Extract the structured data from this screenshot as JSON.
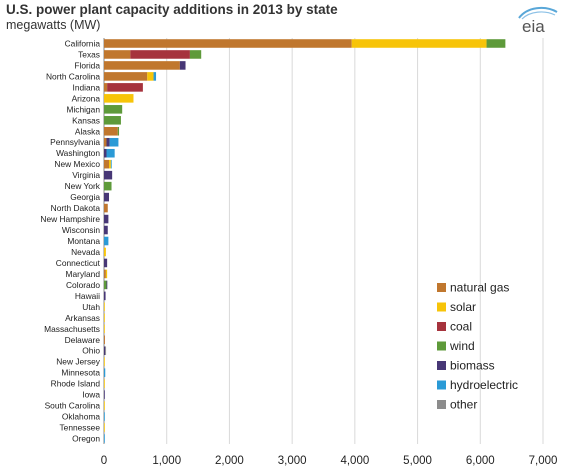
{
  "header": {
    "title": "U.S. power plant capacity additions in 2013 by state",
    "subtitle": "megawatts (MW)",
    "logo_text": "eia"
  },
  "colors": {
    "natural gas": "#c0772e",
    "solar": "#f7c409",
    "coal": "#a6333d",
    "wind": "#5e9a3a",
    "biomass": "#473776",
    "hydroelectric": "#2a9ad6",
    "other": "#8c8c8c"
  },
  "chart_data": {
    "type": "bar",
    "orientation": "horizontal",
    "stacked": true,
    "title": "U.S. power plant capacity additions in 2013 by state",
    "subtitle": "megawatts (MW)",
    "xlim": [
      0,
      7000
    ],
    "xticks": [
      "0",
      "1,000",
      "2,000",
      "3,000",
      "4,000",
      "5,000",
      "6,000",
      "7,000"
    ],
    "grid": "vertical",
    "legend_position": "bottom-right",
    "categories": [
      "California",
      "Texas",
      "Florida",
      "North Carolina",
      "Indiana",
      "Arizona",
      "Michigan",
      "Kansas",
      "Alaska",
      "Pennsylvania",
      "Washington",
      "New Mexico",
      "Virginia",
      "New York",
      "Georgia",
      "North Dakota",
      "New Hampshire",
      "Wisconsin",
      "Montana",
      "Nevada",
      "Connecticut",
      "Maryland",
      "Colorado",
      "Hawaii",
      "Utah",
      "Arkansas",
      "Massachusetts",
      "Delaware",
      "Ohio",
      "New Jersey",
      "Minnesota",
      "Rhode Island",
      "Iowa",
      "South Carolina",
      "Oklahoma",
      "Tennessee",
      "Oregon"
    ],
    "series": [
      {
        "name": "natural gas",
        "values": [
          3950,
          420,
          1210,
          690,
          50,
          0,
          0,
          0,
          220,
          40,
          0,
          80,
          0,
          0,
          0,
          60,
          0,
          0,
          0,
          0,
          0,
          30,
          0,
          0,
          0,
          0,
          0,
          15,
          0,
          0,
          0,
          0,
          0,
          0,
          0,
          0,
          0
        ]
      },
      {
        "name": "solar",
        "values": [
          2150,
          0,
          0,
          100,
          0,
          470,
          0,
          0,
          0,
          0,
          0,
          30,
          0,
          0,
          0,
          0,
          0,
          0,
          0,
          30,
          0,
          20,
          0,
          0,
          5,
          10,
          10,
          0,
          0,
          10,
          0,
          10,
          0,
          5,
          0,
          5,
          0
        ]
      },
      {
        "name": "coal",
        "values": [
          0,
          950,
          0,
          0,
          570,
          0,
          0,
          0,
          0,
          0,
          0,
          0,
          0,
          0,
          0,
          0,
          0,
          0,
          0,
          0,
          0,
          0,
          0,
          0,
          0,
          0,
          0,
          0,
          0,
          0,
          0,
          0,
          0,
          0,
          0,
          0,
          0
        ]
      },
      {
        "name": "wind",
        "values": [
          300,
          180,
          0,
          0,
          0,
          0,
          290,
          270,
          20,
          0,
          0,
          0,
          0,
          120,
          0,
          0,
          0,
          0,
          0,
          0,
          0,
          0,
          40,
          0,
          0,
          0,
          0,
          0,
          0,
          0,
          0,
          0,
          0,
          0,
          0,
          0,
          0
        ]
      },
      {
        "name": "biomass",
        "values": [
          0,
          0,
          90,
          0,
          0,
          0,
          0,
          0,
          0,
          50,
          40,
          0,
          130,
          0,
          80,
          0,
          70,
          60,
          0,
          0,
          50,
          0,
          10,
          25,
          0,
          0,
          0,
          0,
          20,
          0,
          0,
          0,
          5,
          0,
          0,
          0,
          0
        ]
      },
      {
        "name": "hydroelectric",
        "values": [
          0,
          0,
          0,
          40,
          0,
          0,
          0,
          0,
          0,
          140,
          130,
          10,
          0,
          0,
          0,
          0,
          0,
          0,
          70,
          0,
          0,
          0,
          0,
          0,
          0,
          0,
          0,
          0,
          0,
          0,
          20,
          0,
          0,
          0,
          5,
          0,
          5
        ]
      },
      {
        "name": "other",
        "values": [
          0,
          0,
          0,
          0,
          0,
          0,
          0,
          0,
          0,
          0,
          0,
          0,
          0,
          0,
          0,
          0,
          0,
          0,
          0,
          0,
          0,
          0,
          0,
          0,
          0,
          0,
          0,
          0,
          5,
          0,
          0,
          0,
          0,
          0,
          0,
          0,
          0
        ]
      }
    ]
  }
}
